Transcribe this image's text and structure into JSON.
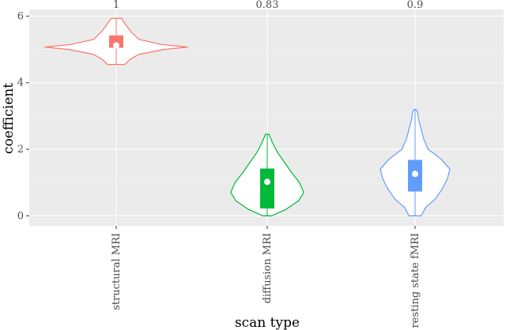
{
  "chart_data": {
    "type": "violin",
    "xlabel": "scan type",
    "ylabel": "coefficient",
    "categories": [
      "structural MRI",
      "diffusion MRI",
      "resting state fMRI"
    ],
    "ylim": [
      -0.3,
      6.2
    ],
    "yticks": [
      0,
      2,
      4,
      6
    ],
    "grid": true,
    "legend": "none",
    "annotations": [
      "1",
      "0.83",
      "0.9"
    ],
    "series": [
      {
        "color": "#F8766D",
        "median": 5.12,
        "q1": 5.05,
        "q3": 5.42,
        "whisker_min": 4.55,
        "whisker_max": 5.93,
        "density": [
          [
            4.55,
            0.1
          ],
          [
            4.7,
            0.16
          ],
          [
            4.85,
            0.26
          ],
          [
            5.0,
            0.55
          ],
          [
            5.07,
            0.82
          ],
          [
            5.15,
            0.52
          ],
          [
            5.3,
            0.26
          ],
          [
            5.5,
            0.18
          ],
          [
            5.7,
            0.12
          ],
          [
            5.85,
            0.08
          ],
          [
            5.93,
            0.06
          ]
        ]
      },
      {
        "color": "#00BA38",
        "median": 1.02,
        "q1": 0.22,
        "q3": 1.42,
        "whisker_min": 0.0,
        "whisker_max": 2.45,
        "density": [
          [
            0.0,
            0.05
          ],
          [
            0.2,
            0.22
          ],
          [
            0.45,
            0.36
          ],
          [
            0.7,
            0.42
          ],
          [
            1.0,
            0.37
          ],
          [
            1.3,
            0.28
          ],
          [
            1.6,
            0.2
          ],
          [
            1.9,
            0.12
          ],
          [
            2.2,
            0.06
          ],
          [
            2.45,
            0.02
          ]
        ]
      },
      {
        "color": "#619CFF",
        "median": 1.26,
        "q1": 0.73,
        "q3": 1.68,
        "whisker_min": 0.0,
        "whisker_max": 3.2,
        "density": [
          [
            0.0,
            0.07
          ],
          [
            0.25,
            0.12
          ],
          [
            0.5,
            0.23
          ],
          [
            0.8,
            0.31
          ],
          [
            1.1,
            0.37
          ],
          [
            1.4,
            0.4
          ],
          [
            1.7,
            0.3
          ],
          [
            2.0,
            0.15
          ],
          [
            2.3,
            0.1
          ],
          [
            2.6,
            0.07
          ],
          [
            2.9,
            0.04
          ],
          [
            3.1,
            0.03
          ],
          [
            3.2,
            0.01
          ]
        ]
      }
    ]
  }
}
